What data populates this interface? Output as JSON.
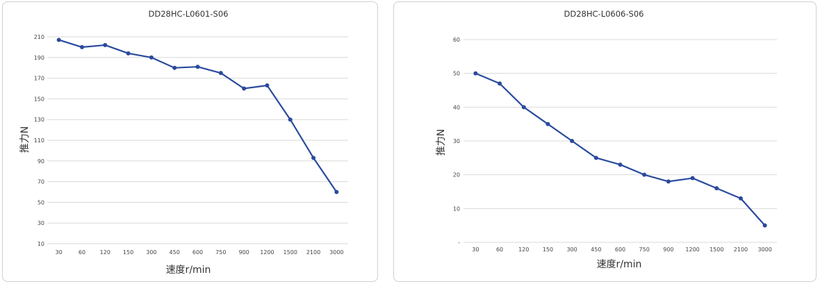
{
  "chart_data": [
    {
      "type": "line",
      "title": "DD28HC-L0601-S06",
      "xlabel": "速度r/min",
      "ylabel": "推力N",
      "categories": [
        "30",
        "60",
        "120",
        "150",
        "300",
        "450",
        "600",
        "750",
        "900",
        "1200",
        "1500",
        "2100",
        "3000"
      ],
      "y_ticks": [
        "10",
        "30",
        "50",
        "70",
        "90",
        "110",
        "130",
        "150",
        "170",
        "190",
        "210"
      ],
      "ylim": [
        10,
        210
      ],
      "grid": true,
      "series": [
        {
          "values": [
            207,
            200,
            202,
            194,
            190,
            180,
            181,
            175,
            160,
            163,
            130,
            93,
            60
          ]
        }
      ],
      "colors": {
        "line": "#2a4a9e",
        "grid": "#d9d9d9"
      }
    },
    {
      "type": "line",
      "title": "DD28HC-L0606-S06",
      "xlabel": "速度r/min",
      "ylabel": "推力N",
      "categories": [
        "30",
        "60",
        "120",
        "150",
        "300",
        "450",
        "600",
        "750",
        "900",
        "1200",
        "1500",
        "2100",
        "3000"
      ],
      "y_ticks": [
        "-",
        "10",
        "20",
        "30",
        "40",
        "50",
        "60"
      ],
      "ylim": [
        0,
        60
      ],
      "grid": true,
      "series": [
        {
          "values": [
            50,
            47,
            40,
            35,
            30,
            25,
            23,
            20,
            18,
            19,
            16,
            13,
            5
          ]
        }
      ],
      "colors": {
        "line": "#2a4a9e",
        "grid": "#d9d9d9"
      }
    }
  ]
}
